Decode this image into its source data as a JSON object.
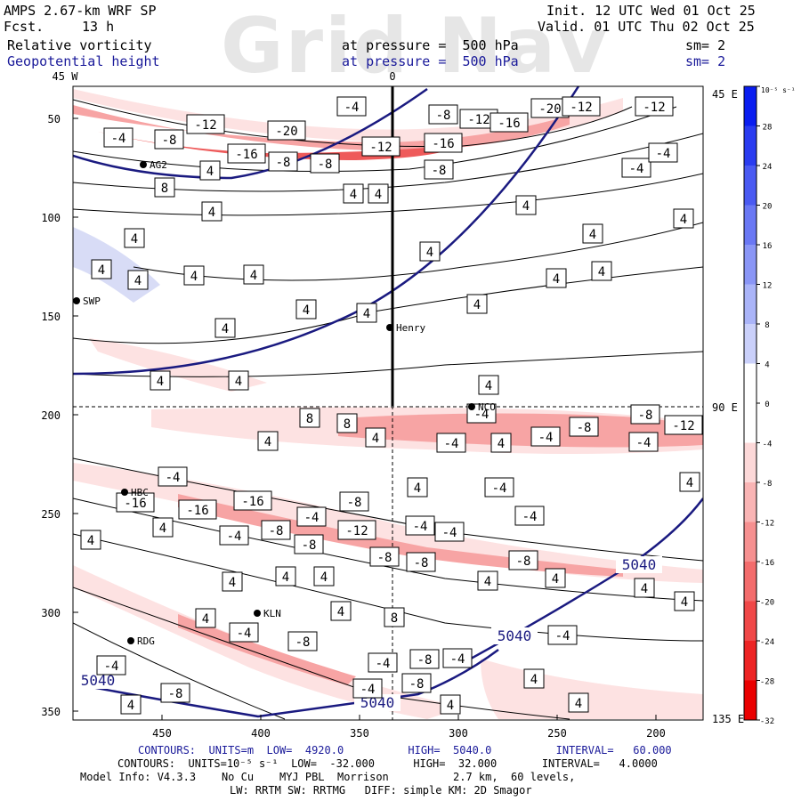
{
  "header": {
    "model": "AMPS 2.67-km WRF SP",
    "fcst_label": "Fcst.",
    "fcst_value": "13 h",
    "init": "Init. 12 UTC Wed 01 Oct 25",
    "valid": "Valid. 01 UTC Thu 02 Oct 25",
    "field1": "Relative vorticity",
    "field1_level": "at pressure =  500 hPa",
    "field1_sm": "sm= 2",
    "field2": "Geopotential height",
    "field2_level": "at pressure =  500 hPa",
    "field2_sm": "sm= 2",
    "watermark": "Grid Nav"
  },
  "footer": {
    "line1": "CONTOURS:  UNITS=m  LOW=  4920.0          HIGH=  5040.0          INTERVAL=   60.000",
    "line2": "CONTOURS:  UNITS=10⁻⁵ s⁻¹  LOW=  -32.000      HIGH=  32.000       INTERVAL=   4.0000",
    "line3": "Model Info: V4.3.3    No Cu    MYJ PBL  Morrison          2.7 km,  60 levels,",
    "line4": "LW: RRTM SW: RRTMG   DIFF: simple KM: 2D Smagor"
  },
  "colors": {
    "frame": "#000000",
    "height_contour": "#1a1a80",
    "neg_light": "#fde2e2",
    "neg_mid": "#f7a4a4",
    "neg_strong": "#ee5a5a",
    "pos_light": "#d8dcf6"
  },
  "chart_data": {
    "type": "heatmap",
    "x_ticks": [
      "450",
      "400",
      "350",
      "300",
      "250",
      "200"
    ],
    "y_ticks": [
      "50",
      "100",
      "150",
      "200",
      "250",
      "300",
      "350"
    ],
    "top_labels": [
      "45 W",
      "0"
    ],
    "right_labels": [
      "45 E",
      "90 E",
      "135 E"
    ],
    "colorbar": {
      "units": "10⁻⁵ s⁻¹",
      "ticks": [
        "32",
        "28",
        "24",
        "20",
        "16",
        "12",
        "8",
        "4",
        "0",
        "-4",
        "-8",
        "-12",
        "-16",
        "-20",
        "-24",
        "-28",
        "-32"
      ],
      "range": [
        -32,
        32
      ],
      "interval": 4
    },
    "stations": [
      "AG2",
      "SWP",
      "Henry",
      "NCO",
      "HBC",
      "KLN",
      "RDG"
    ],
    "height_contour_labels": [
      "5040",
      "5040",
      "5040",
      "5040"
    ],
    "vorticity_labels": [
      "-4",
      "-8",
      "-12",
      "-16",
      "-20",
      "4",
      "8",
      "-4",
      "-8",
      "-12",
      "-16",
      "-20",
      "-12",
      "-12",
      "-16",
      "-12",
      "-8",
      "-8",
      "-8",
      "-4",
      "-4",
      "4",
      "4",
      "4",
      "4",
      "4",
      "4",
      "4",
      "4",
      "4",
      "4",
      "4",
      "4",
      "4",
      "4",
      "4",
      "4",
      "4",
      "4",
      "4",
      "4",
      "4",
      "8",
      "8",
      "4",
      "4",
      "-4",
      "-4",
      "4",
      "-4",
      "-8",
      "-4",
      "-8",
      "-12",
      "-4",
      "-16",
      "-16",
      "-16",
      "-4",
      "-8",
      "4",
      "-4",
      "-4",
      "4",
      "4",
      "-4",
      "-8",
      "-8",
      "-12",
      "-4",
      "-4",
      "-8",
      "-8",
      "-8",
      "4",
      "4",
      "4",
      "4",
      "4",
      "4",
      "4",
      "4",
      "4",
      "8",
      "4",
      "-4",
      "-8",
      "-4",
      "-8",
      "-4",
      "-4",
      "-8",
      "-4",
      "-8",
      "4",
      "4",
      "-4",
      "4",
      "4",
      "-4",
      "-4",
      "4"
    ]
  }
}
